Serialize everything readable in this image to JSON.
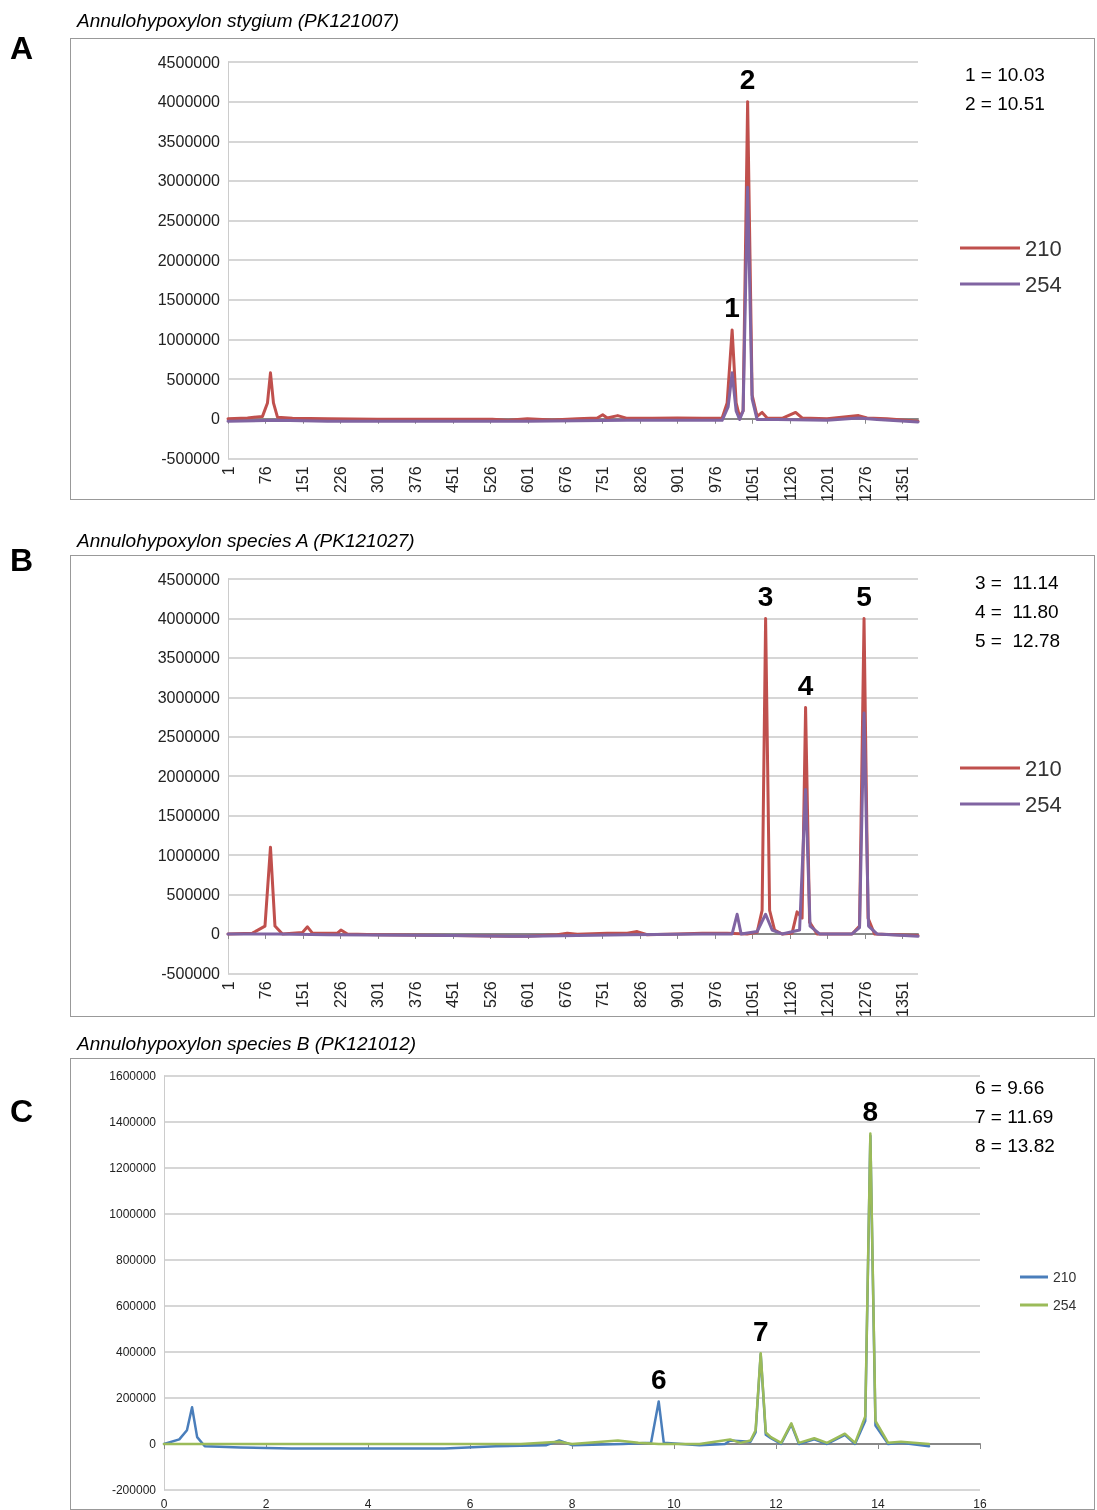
{
  "chart_data": [
    {
      "type": "line",
      "title": "Annulohypoxylon stygium (PK121007)",
      "xlim": [
        1,
        1382
      ],
      "xticks": [
        1,
        76,
        151,
        226,
        301,
        376,
        451,
        526,
        601,
        676,
        751,
        826,
        901,
        976,
        1051,
        1126,
        1201,
        1276,
        1351
      ],
      "ylim": [
        -500000,
        4500000
      ],
      "yticks": [
        -500000,
        0,
        500000,
        1000000,
        1500000,
        2000000,
        2500000,
        3000000,
        3500000,
        4000000,
        4500000
      ],
      "grid": "y",
      "legend": "right",
      "series": [
        {
          "name": "210",
          "color": "#c0504d",
          "x": [
            1,
            40,
            70,
            80,
            86,
            92,
            100,
            130,
            200,
            300,
            400,
            530,
            560,
            600,
            650,
            700,
            740,
            751,
            760,
            781,
            800,
            850,
            900,
            950,
            990,
            1000,
            1010,
            1018,
            1025,
            1032,
            1041,
            1050,
            1060,
            1070,
            1080,
            1110,
            1137,
            1150,
            1200,
            1263,
            1280,
            1320,
            1382
          ],
          "values": [
            0,
            10000,
            30000,
            200000,
            580000,
            200000,
            20000,
            5000,
            0,
            -5000,
            -5000,
            -5000,
            -20000,
            0,
            -15000,
            0,
            10000,
            50000,
            10000,
            40000,
            5000,
            5000,
            10000,
            5000,
            10000,
            200000,
            1120000,
            200000,
            20000,
            100000,
            4000000,
            300000,
            30000,
            80000,
            10000,
            5000,
            80000,
            10000,
            0,
            40000,
            10000,
            0,
            -30000
          ]
        },
        {
          "name": "254",
          "color": "#8064a2",
          "x": [
            1,
            100,
            200,
            400,
            600,
            800,
            990,
            1002,
            1010,
            1018,
            1025,
            1032,
            1041,
            1050,
            1060,
            1100,
            1200,
            1263,
            1300,
            1382
          ],
          "values": [
            -30000,
            -20000,
            -30000,
            -30000,
            -30000,
            -20000,
            -20000,
            150000,
            580000,
            100000,
            -10000,
            100000,
            2920000,
            250000,
            -10000,
            -10000,
            -20000,
            10000,
            -10000,
            -40000
          ]
        }
      ],
      "annotations": [
        "A",
        "1 = 10.03",
        "2 = 10.51",
        {
          "text": "1",
          "x": 1010,
          "y": 1120000
        },
        {
          "text": "2",
          "x": 1041,
          "y": 4000000
        }
      ]
    },
    {
      "type": "line",
      "title": "Annulohypoxylon species A (PK121027)",
      "xlim": [
        1,
        1382
      ],
      "xticks": [
        1,
        76,
        151,
        226,
        301,
        376,
        451,
        526,
        601,
        676,
        751,
        826,
        901,
        976,
        1051,
        1126,
        1201,
        1276,
        1351
      ],
      "ylim": [
        -500000,
        4500000
      ],
      "yticks": [
        -500000,
        0,
        500000,
        1000000,
        1500000,
        2000000,
        2500000,
        3000000,
        3500000,
        4000000,
        4500000
      ],
      "grid": "y",
      "legend": "right",
      "series": [
        {
          "name": "210",
          "color": "#c0504d",
          "x": [
            1,
            50,
            75,
            86,
            95,
            110,
            150,
            160,
            170,
            220,
            227,
            240,
            300,
            450,
            600,
            660,
            680,
            700,
            760,
            800,
            820,
            840,
            900,
            950,
            1000,
            1040,
            1060,
            1070,
            1077,
            1085,
            1095,
            1110,
            1130,
            1140,
            1150,
            1157,
            1165,
            1180,
            1250,
            1265,
            1274,
            1282,
            1295,
            1382
          ],
          "values": [
            0,
            10000,
            100000,
            1100000,
            100000,
            0,
            20000,
            90000,
            10000,
            10000,
            50000,
            0,
            -10000,
            -20000,
            -30000,
            -10000,
            10000,
            -5000,
            10000,
            10000,
            30000,
            -10000,
            0,
            10000,
            10000,
            0,
            20000,
            300000,
            4000000,
            300000,
            50000,
            0,
            10000,
            280000,
            200000,
            2870000,
            150000,
            0,
            0,
            100000,
            4000000,
            200000,
            0,
            -20000
          ]
        },
        {
          "name": "254",
          "color": "#8064a2",
          "x": [
            1,
            100,
            200,
            450,
            600,
            800,
            950,
            1010,
            1020,
            1028,
            1060,
            1077,
            1090,
            1110,
            1145,
            1157,
            1166,
            1185,
            1250,
            1265,
            1274,
            1283,
            1300,
            1382
          ],
          "values": [
            0,
            0,
            -10000,
            -20000,
            -30000,
            -10000,
            0,
            0,
            250000,
            0,
            30000,
            250000,
            50000,
            0,
            50000,
            1830000,
            100000,
            0,
            0,
            80000,
            2800000,
            100000,
            0,
            -30000
          ]
        }
      ],
      "annotations": [
        "B",
        "3 =  11.14",
        "4 =  11.80",
        "5 =  12.78",
        {
          "text": "3",
          "x": 1077,
          "y": 4000000
        },
        {
          "text": "4",
          "x": 1157,
          "y": 2870000
        },
        {
          "text": "5",
          "x": 1274,
          "y": 4000000
        }
      ]
    },
    {
      "type": "line",
      "title": "Annulohypoxylon species B (PK121012)",
      "xlim": [
        0,
        16
      ],
      "xticks": [
        0,
        2,
        4,
        6,
        8,
        10,
        12,
        14,
        16
      ],
      "ylim": [
        -200000,
        1600000
      ],
      "yticks": [
        -200000,
        0,
        200000,
        400000,
        600000,
        800000,
        1000000,
        1200000,
        1400000,
        1600000
      ],
      "grid": "y",
      "legend": "right",
      "series": [
        {
          "name": "210",
          "color": "#4a7ebb",
          "x": [
            0,
            0.3,
            0.45,
            0.55,
            0.65,
            0.8,
            1.5,
            2.5,
            4,
            5.5,
            6.5,
            7.5,
            7.75,
            8,
            9,
            9.55,
            9.7,
            9.8,
            10.5,
            11,
            11.1,
            11.5,
            11.6,
            11.7,
            11.8,
            11.9,
            12.1,
            12.3,
            12.45,
            12.75,
            13,
            13.35,
            13.55,
            13.75,
            13.85,
            13.95,
            14.2,
            14.45,
            15
          ],
          "values": [
            0,
            20000,
            60000,
            160000,
            30000,
            -10000,
            -15000,
            -20000,
            -20000,
            -20000,
            -10000,
            -5000,
            15000,
            -5000,
            0,
            5000,
            185000,
            5000,
            -5000,
            0,
            15000,
            10000,
            50000,
            390000,
            40000,
            25000,
            0,
            85000,
            0,
            20000,
            0,
            40000,
            0,
            100000,
            1340000,
            80000,
            0,
            5000,
            -10000
          ]
        },
        {
          "name": "254",
          "color": "#9bbb59",
          "x": [
            0,
            1,
            3,
            5,
            7,
            7.75,
            8,
            8.9,
            9.3,
            9.7,
            10.5,
            11.1,
            11.3,
            11.5,
            11.6,
            11.7,
            11.8,
            11.9,
            12.1,
            12.3,
            12.45,
            12.75,
            13,
            13.35,
            13.55,
            13.75,
            13.85,
            13.95,
            14.2,
            14.45,
            15
          ],
          "values": [
            0,
            0,
            0,
            0,
            0,
            10000,
            0,
            15000,
            5000,
            0,
            0,
            20000,
            5000,
            15000,
            60000,
            395000,
            50000,
            30000,
            5000,
            90000,
            5000,
            25000,
            5000,
            45000,
            5000,
            120000,
            1350000,
            100000,
            5000,
            10000,
            0
          ]
        }
      ],
      "annotations": [
        "C",
        "6 = 9.66",
        "7 = 11.69",
        "8 = 13.82",
        {
          "text": "6",
          "x": 9.7,
          "y": 185000
        },
        {
          "text": "7",
          "x": 11.7,
          "y": 395000
        },
        {
          "text": "8",
          "x": 13.85,
          "y": 1350000
        }
      ]
    }
  ]
}
